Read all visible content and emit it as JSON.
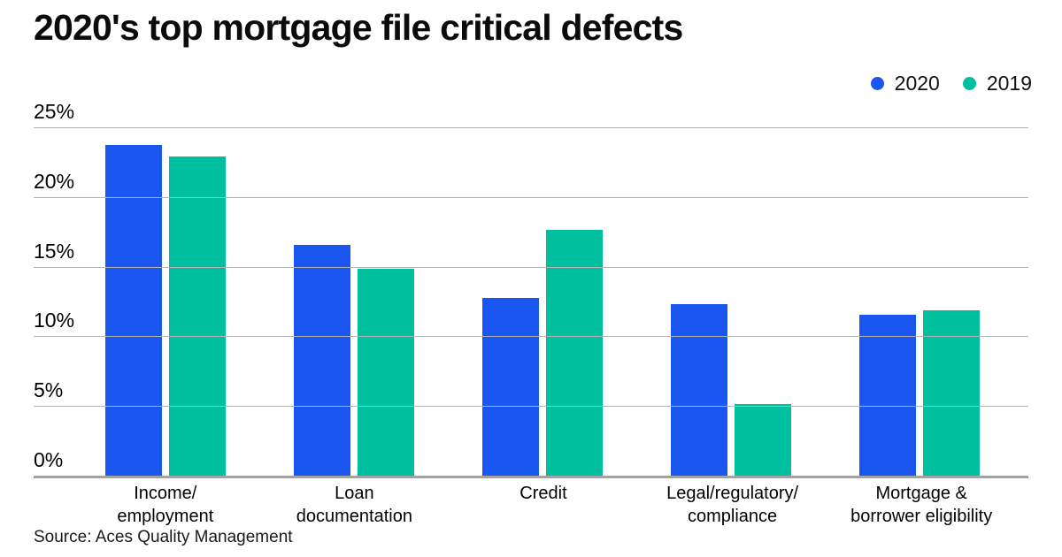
{
  "header": {
    "title": "2020's top mortgage file critical defects"
  },
  "footer": {
    "source": "Source: Aces Quality Management"
  },
  "chart_data": {
    "type": "bar",
    "title": "2020's top mortgage file critical defects",
    "categories": [
      "Income/\nemployment",
      "Loan\ndocumentation",
      "Credit",
      "Legal/regulatory/\ncompliance",
      "Mortgage &\nborrower eligibility"
    ],
    "series": [
      {
        "name": "2020",
        "color": "#1a57f0",
        "values": [
          23.8,
          16.6,
          12.8,
          12.4,
          11.6
        ]
      },
      {
        "name": "2019",
        "color": "#00bf9e",
        "values": [
          23.0,
          14.9,
          17.7,
          5.2,
          11.9
        ]
      }
    ],
    "ylim": [
      0,
      25
    ],
    "yticks": [
      {
        "label": "0%",
        "value": 0
      },
      {
        "label": "5%",
        "value": 5
      },
      {
        "label": "10%",
        "value": 10
      },
      {
        "label": "15%",
        "value": 15
      },
      {
        "label": "20%",
        "value": 20
      },
      {
        "label": "25%",
        "value": 25
      }
    ],
    "grid": true,
    "legend_position": "top-right",
    "xlabel": "",
    "ylabel": "",
    "source": "Source: Aces Quality Management",
    "colors": {
      "gridline": "#b4b4b4",
      "axis_line": "#a2a2a2",
      "text": "#000000"
    }
  }
}
